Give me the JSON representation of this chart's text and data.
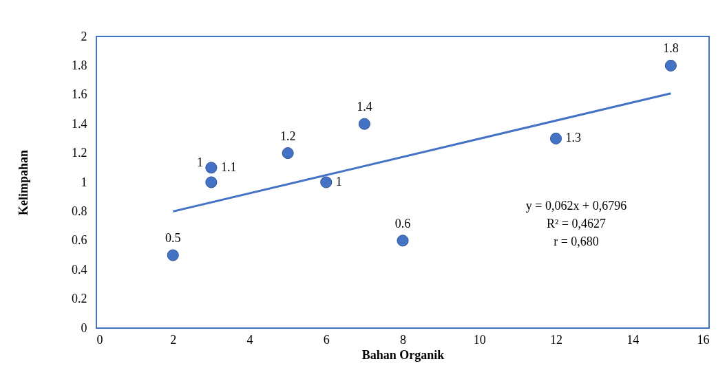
{
  "chart_data": {
    "type": "scatter",
    "xlabel": "Bahan Organik",
    "ylabel": "Kelimpahan",
    "xlim": [
      0,
      16
    ],
    "xticks": [
      0,
      2,
      4,
      6,
      8,
      10,
      12,
      14,
      16
    ],
    "ylim": [
      0,
      2
    ],
    "yticks": [
      0,
      0.2,
      0.4,
      0.6,
      0.8,
      1,
      1.2,
      1.4,
      1.6,
      1.8,
      2
    ],
    "grid": false,
    "marker": "circle",
    "series": [
      {
        "color": "#4472c4",
        "x": [
          2,
          3,
          3,
          5,
          6,
          7,
          8,
          12,
          15
        ],
        "values": [
          0.5,
          1.1,
          1,
          1.2,
          1,
          1.4,
          0.6,
          1.3,
          1.8
        ],
        "value_labels": [
          "0.5",
          "1.1",
          "1",
          "1.2",
          "1",
          "1.4",
          "0.6",
          "1.3",
          "1.8"
        ]
      },
      {
        "type": "line",
        "marker": "none",
        "color": "#4472c4",
        "x": [
          2,
          15
        ],
        "values": [
          0.8,
          1.61
        ]
      }
    ],
    "annotations": [
      "y = 0,062x + 0,6796",
      "R² = 0,4627",
      "r = 0,680"
    ]
  }
}
